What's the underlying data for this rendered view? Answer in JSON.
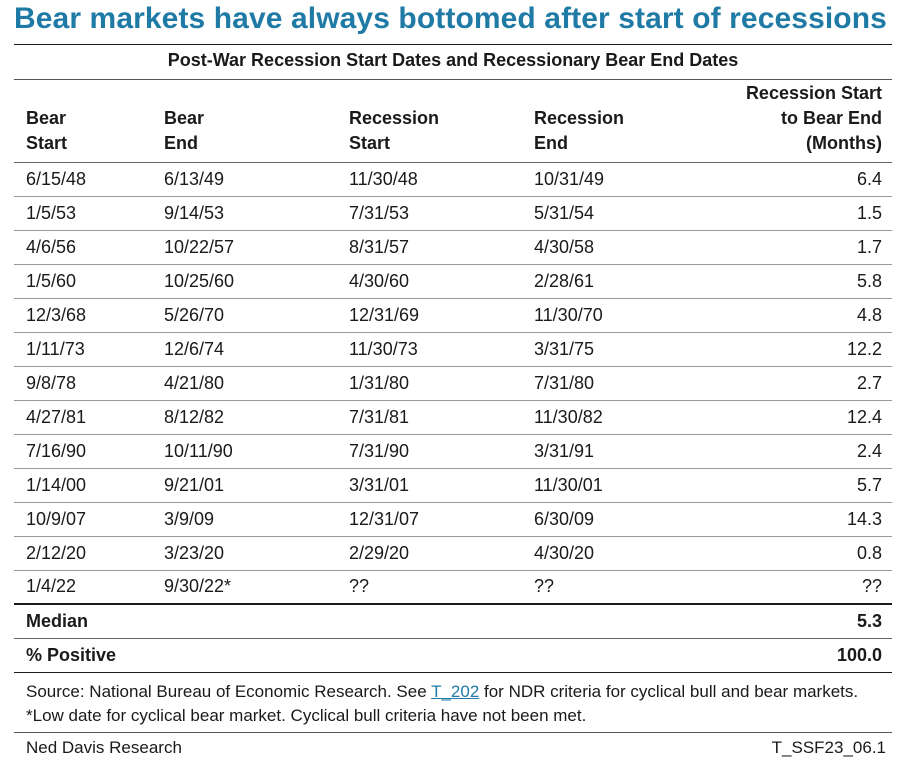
{
  "title": "Bear markets have always bottomed after start of recessions",
  "subtitle": "Post-War Recession Start Dates and Recessionary Bear End Dates",
  "table": {
    "headers": [
      [
        "Bear",
        "Start"
      ],
      [
        "Bear",
        "End"
      ],
      [
        "Recession",
        "Start"
      ],
      [
        "Recession",
        "End"
      ],
      [
        "Recession Start",
        "to Bear End",
        "(Months)"
      ]
    ],
    "rows": [
      [
        "6/15/48",
        "6/13/49",
        "11/30/48",
        "10/31/49",
        "6.4"
      ],
      [
        "1/5/53",
        "9/14/53",
        "7/31/53",
        "5/31/54",
        "1.5"
      ],
      [
        "4/6/56",
        "10/22/57",
        "8/31/57",
        "4/30/58",
        "1.7"
      ],
      [
        "1/5/60",
        "10/25/60",
        "4/30/60",
        "2/28/61",
        "5.8"
      ],
      [
        "12/3/68",
        "5/26/70",
        "12/31/69",
        "11/30/70",
        "4.8"
      ],
      [
        "1/11/73",
        "12/6/74",
        "11/30/73",
        "3/31/75",
        "12.2"
      ],
      [
        "9/8/78",
        "4/21/80",
        "1/31/80",
        "7/31/80",
        "2.7"
      ],
      [
        "4/27/81",
        "8/12/82",
        "7/31/81",
        "11/30/82",
        "12.4"
      ],
      [
        "7/16/90",
        "10/11/90",
        "7/31/90",
        "3/31/91",
        "2.4"
      ],
      [
        "1/14/00",
        "9/21/01",
        "3/31/01",
        "11/30/01",
        "5.7"
      ],
      [
        "10/9/07",
        "3/9/09",
        "12/31/07",
        "6/30/09",
        "14.3"
      ],
      [
        "2/12/20",
        "3/23/20",
        "2/29/20",
        "4/30/20",
        "0.8"
      ],
      [
        "1/4/22",
        "9/30/22*",
        "??",
        "??",
        "??"
      ]
    ],
    "summary": [
      {
        "label": "Median",
        "value": "5.3"
      },
      {
        "label": "% Positive",
        "value": "100.0"
      }
    ]
  },
  "source": {
    "prefix": "Source: National Bureau of Economic Research. See ",
    "link_text": "T_202",
    "suffix": " for NDR criteria for cyclical bull and bear markets. *Low date for cyclical bear market. Cyclical bull criteria have not been met."
  },
  "footer": {
    "left": "Ned Davis Research",
    "right": "T_SSF23_06.1"
  },
  "colors": {
    "title": "#1f7aa6",
    "link": "#1f7aa6"
  }
}
